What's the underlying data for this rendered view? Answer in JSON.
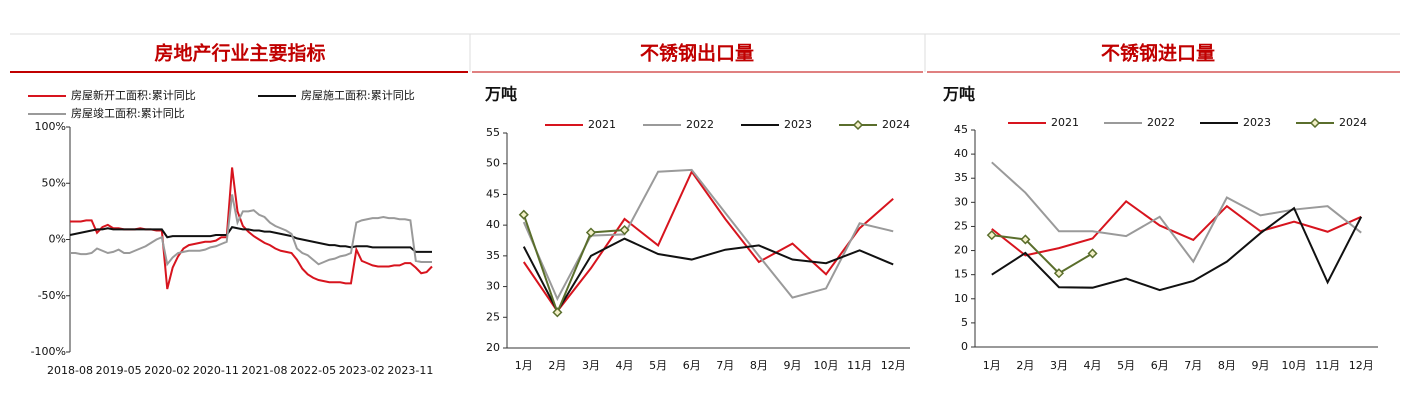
{
  "chart_data": [
    {
      "type": "line",
      "title": "房地产行业主要指标",
      "categories": [
        "2018-08",
        null,
        null,
        null,
        null,
        null,
        null,
        null,
        null,
        "2019-05",
        null,
        null,
        null,
        null,
        null,
        null,
        null,
        null,
        "2020-02",
        null,
        null,
        null,
        null,
        null,
        null,
        null,
        null,
        "2020-11",
        null,
        null,
        null,
        null,
        null,
        null,
        null,
        null,
        "2021-08",
        null,
        null,
        null,
        null,
        null,
        null,
        null,
        null,
        "2022-05",
        null,
        null,
        null,
        null,
        null,
        null,
        null,
        null,
        "2023-02",
        null,
        null,
        null,
        null,
        null,
        null,
        null,
        null,
        "2023-11",
        null,
        null,
        null,
        null
      ],
      "series": [
        {
          "name": "房屋新开工面积:累计同比",
          "color": "#d7141e",
          "values": [
            16,
            16,
            16,
            17,
            17,
            6,
            11,
            13,
            10,
            10,
            9,
            9,
            9,
            10,
            9,
            9,
            8,
            8,
            -44,
            -25,
            -15,
            -8,
            -5,
            -4,
            -3,
            -2,
            -2,
            -1,
            2,
            2,
            64,
            25,
            12,
            7,
            3,
            0,
            -3,
            -5,
            -8,
            -10,
            -11,
            -12,
            -18,
            -26,
            -31,
            -34,
            -36,
            -37,
            -38,
            -38,
            -38,
            -39,
            -39,
            -9,
            -19,
            -21,
            -23,
            -24,
            -24,
            -24,
            -23,
            -23,
            -21,
            -21,
            -25,
            -30,
            -29,
            -24
          ]
        },
        {
          "name": "房屋施工面积:累计同比",
          "color": "#111111",
          "values": [
            4,
            5,
            6,
            7,
            8,
            9,
            9,
            10,
            9,
            9,
            9,
            9,
            9,
            9,
            9,
            9,
            9,
            9,
            2,
            3,
            3,
            3,
            3,
            3,
            3,
            3,
            3,
            4,
            4,
            4,
            11,
            10,
            9,
            9,
            8,
            8,
            7,
            7,
            6,
            5,
            4,
            3,
            1,
            0,
            -1,
            -2,
            -3,
            -4,
            -5,
            -5,
            -6,
            -6,
            -7,
            -6,
            -6,
            -6,
            -7,
            -7,
            -7,
            -7,
            -7,
            -7,
            -7,
            -7,
            -11,
            -11,
            -11,
            -11
          ]
        },
        {
          "name": "房屋竣工面积:累计同比",
          "color": "#9a9a9a",
          "values": [
            -12,
            -12,
            -13,
            -13,
            -12,
            -8,
            -10,
            -12,
            -11,
            -9,
            -12,
            -12,
            -10,
            -8,
            -6,
            -3,
            0,
            2,
            -22,
            -16,
            -12,
            -11,
            -10,
            -10,
            -10,
            -9,
            -7,
            -6,
            -4,
            -2,
            40,
            15,
            25,
            25,
            26,
            22,
            20,
            15,
            12,
            10,
            8,
            5,
            -8,
            -12,
            -14,
            -18,
            -22,
            -20,
            -18,
            -17,
            -15,
            -14,
            -12,
            15,
            17,
            18,
            19,
            19,
            20,
            19,
            19,
            18,
            18,
            17,
            -19,
            -20,
            -20,
            -20
          ]
        }
      ],
      "ylim": [
        -100,
        100
      ],
      "yticks": [
        {
          "value": 100,
          "label": "100%"
        },
        {
          "value": 50,
          "label": "50%"
        },
        {
          "value": 0,
          "label": "0%"
        },
        {
          "value": -50,
          "label": "-50%"
        },
        {
          "value": -100,
          "label": "-100%"
        }
      ]
    },
    {
      "type": "line",
      "title": "不锈钢出口量",
      "y_label": "万吨",
      "categories": [
        "1月",
        "2月",
        "3月",
        "4月",
        "5月",
        "6月",
        "7月",
        "8月",
        "9月",
        "10月",
        "11月",
        "12月"
      ],
      "series": [
        {
          "name": "2021",
          "color": "#d7141e",
          "values": [
            34,
            26,
            33,
            41,
            36.7,
            48.7,
            41,
            34,
            37,
            32,
            39.5,
            44.3
          ]
        },
        {
          "name": "2022",
          "color": "#9a9a9a",
          "values": [
            40.5,
            28,
            38.3,
            38.5,
            48.7,
            49,
            42,
            35,
            28.2,
            29.7,
            40.3,
            39
          ]
        },
        {
          "name": "2023",
          "color": "#111111",
          "values": [
            36.5,
            26,
            35,
            37.8,
            35.3,
            34.4,
            36,
            36.7,
            34.4,
            33.8,
            35.9,
            33.6
          ]
        },
        {
          "name": "2024",
          "color": "#5a6e2c",
          "marker": "diamond",
          "values": [
            41.7,
            25.8,
            38.8,
            39.2,
            null,
            null,
            null,
            null,
            null,
            null,
            null,
            null
          ]
        }
      ],
      "ylim": [
        20,
        55
      ],
      "yticks": [
        20,
        25,
        30,
        35,
        40,
        45,
        50,
        55
      ]
    },
    {
      "type": "line",
      "title": "不锈钢进口量",
      "y_label": "万吨",
      "categories": [
        "1月",
        "2月",
        "3月",
        "4月",
        "5月",
        "6月",
        "7月",
        "8月",
        "9月",
        "10月",
        "11月",
        "12月"
      ],
      "series": [
        {
          "name": "2021",
          "color": "#d7141e",
          "values": [
            24.5,
            19,
            20.5,
            22.5,
            30.2,
            25.2,
            22.2,
            29.2,
            24,
            26,
            23.9,
            27
          ]
        },
        {
          "name": "2022",
          "color": "#9a9a9a",
          "values": [
            38.3,
            32,
            24,
            24,
            23,
            27,
            17.7,
            31,
            27.3,
            28.5,
            29.2,
            23.7
          ]
        },
        {
          "name": "2023",
          "color": "#111111",
          "values": [
            15,
            19.5,
            12.4,
            12.3,
            14.2,
            11.8,
            13.7,
            17.7,
            23.6,
            28.8,
            13.4,
            27
          ]
        },
        {
          "name": "2024",
          "color": "#5a6e2c",
          "marker": "diamond",
          "values": [
            23.2,
            22.3,
            15.3,
            19.4,
            null,
            null,
            null,
            null,
            null,
            null,
            null,
            null
          ]
        }
      ],
      "ylim": [
        0,
        45
      ],
      "yticks": [
        0,
        5,
        10,
        15,
        20,
        25,
        30,
        35,
        40,
        45
      ]
    }
  ]
}
